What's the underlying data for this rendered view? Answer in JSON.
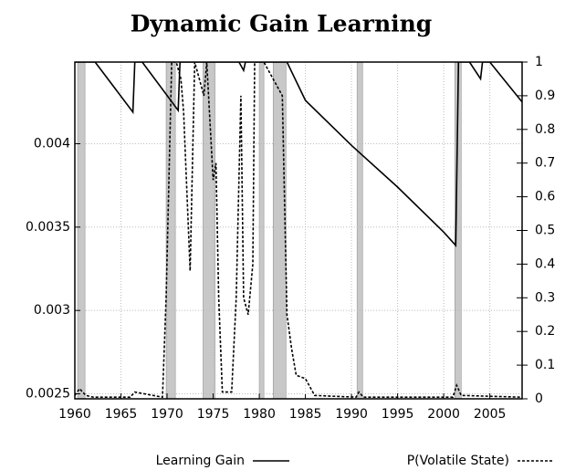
{
  "chart_data": {
    "type": "line",
    "title": "Dynamic Gain Learning",
    "xlim": [
      1960,
      2008.5
    ],
    "xticks": [
      1960,
      1965,
      1970,
      1975,
      1980,
      1985,
      1990,
      1995,
      2000,
      2005
    ],
    "ylim": [
      0.00247,
      0.00449
    ],
    "yticks": [
      0.0025,
      0.003,
      0.0035,
      0.004
    ],
    "y2lim": [
      0,
      1
    ],
    "y2ticks": [
      0,
      0.1,
      0.2,
      0.3,
      0.4,
      0.5,
      0.6,
      0.7,
      0.8,
      0.9,
      1
    ],
    "grid": true,
    "shaded_periods": [
      [
        1960.3,
        1961.1
      ],
      [
        1969.9,
        1970.9
      ],
      [
        1973.9,
        1975.2
      ],
      [
        1980.0,
        1980.5
      ],
      [
        1981.5,
        1982.9
      ],
      [
        1990.6,
        1991.2
      ],
      [
        2001.2,
        2001.9
      ]
    ],
    "shade_color": "#c8c8c8",
    "series": [
      {
        "name": "Learning Gain",
        "color": "#000000",
        "dash": "solid",
        "x": [
          1960,
          1962.2,
          1966.3,
          1966.5,
          1967.3,
          1971.2,
          1971.4,
          1977.8,
          1978.3,
          1978.5,
          1983.0,
          1985,
          1990,
          1995,
          2000,
          2001.3,
          2001.6,
          2002.8,
          2004.0,
          2004.2,
          2005.0,
          2008.5
        ],
        "values": [
          0.00449,
          0.00449,
          0.00419,
          0.00449,
          0.00449,
          0.0042,
          0.00449,
          0.00449,
          0.00444,
          0.00449,
          0.00449,
          0.00426,
          0.00399,
          0.00374,
          0.00347,
          0.00339,
          0.00449,
          0.00449,
          0.00439,
          0.00449,
          0.00449,
          0.00425
        ]
      },
      {
        "name": "P(Volatile State)",
        "color": "#000000",
        "dash": "dashed",
        "axis": "y2",
        "x": [
          1960,
          1960.5,
          1961.2,
          1962,
          1966,
          1966.5,
          1969.5,
          1969.9,
          1970.5,
          1971,
          1971.5,
          1971.8,
          1972.5,
          1973,
          1974,
          1974.3,
          1975,
          1975.3,
          1975.6,
          1976,
          1977,
          1977.5,
          1978,
          1978.3,
          1978.8,
          1979.3,
          1979.5,
          1980.5,
          1982.5,
          1983,
          1983.5,
          1984,
          1985,
          1986,
          1990.5,
          1990.8,
          1991.3,
          2001.0,
          2001.4,
          2001.9,
          2008.5
        ],
        "values": [
          0.01,
          0.03,
          0.01,
          0.005,
          0.005,
          0.02,
          0.005,
          0.3,
          1,
          1,
          0.95,
          0.85,
          0.38,
          1,
          0.9,
          1,
          0.65,
          0.7,
          0.3,
          0.02,
          0.02,
          0.3,
          0.9,
          0.3,
          0.25,
          0.4,
          1,
          1,
          0.9,
          0.25,
          0.15,
          0.07,
          0.06,
          0.01,
          0.005,
          0.02,
          0.005,
          0.005,
          0.04,
          0.01,
          0.005
        ]
      }
    ]
  }
}
